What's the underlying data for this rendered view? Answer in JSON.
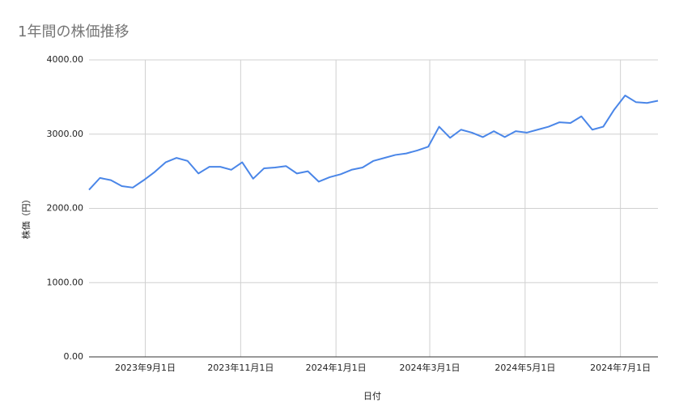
{
  "chart_data": {
    "type": "line",
    "title": "1年間の株価推移",
    "x_label": "日付",
    "y_label": "株価（円）",
    "x": [
      "2023-07-27",
      "2023-08-03",
      "2023-08-10",
      "2023-08-17",
      "2023-08-24",
      "2023-08-31",
      "2023-09-07",
      "2023-09-14",
      "2023-09-21",
      "2023-09-28",
      "2023-10-05",
      "2023-10-12",
      "2023-10-19",
      "2023-10-26",
      "2023-11-02",
      "2023-11-09",
      "2023-11-16",
      "2023-11-23",
      "2023-11-30",
      "2023-12-07",
      "2023-12-14",
      "2023-12-21",
      "2023-12-28",
      "2024-01-04",
      "2024-01-11",
      "2024-01-18",
      "2024-01-25",
      "2024-02-01",
      "2024-02-08",
      "2024-02-15",
      "2024-02-22",
      "2024-02-29",
      "2024-03-07",
      "2024-03-14",
      "2024-03-21",
      "2024-03-28",
      "2024-04-04",
      "2024-04-11",
      "2024-04-18",
      "2024-04-25",
      "2024-05-02",
      "2024-05-09",
      "2024-05-16",
      "2024-05-23",
      "2024-05-30",
      "2024-06-06",
      "2024-06-13",
      "2024-06-20",
      "2024-06-27",
      "2024-07-04",
      "2024-07-11",
      "2024-07-18",
      "2024-07-25"
    ],
    "series": [
      {
        "name": "株価",
        "color": "#4a86e8",
        "values": [
          2250,
          2410,
          2380,
          2300,
          2280,
          2380,
          2490,
          2620,
          2680,
          2640,
          2470,
          2560,
          2560,
          2520,
          2620,
          2400,
          2540,
          2550,
          2570,
          2470,
          2500,
          2360,
          2420,
          2460,
          2520,
          2550,
          2640,
          2680,
          2720,
          2740,
          2780,
          2830,
          3100,
          2950,
          3060,
          3020,
          2960,
          3040,
          2960,
          3040,
          3020,
          3060,
          3100,
          3160,
          3150,
          3240,
          3060,
          3100,
          3330,
          3520,
          3430,
          3420,
          3450
        ]
      }
    ],
    "xlim": [
      "2023-07-27",
      "2024-07-25"
    ],
    "xticks": [
      {
        "value": "2023-09-01",
        "label": "2023年9月1日"
      },
      {
        "value": "2023-11-01",
        "label": "2023年11月1日"
      },
      {
        "value": "2024-01-01",
        "label": "2024年1月1日"
      },
      {
        "value": "2024-03-01",
        "label": "2024年3月1日"
      },
      {
        "value": "2024-05-01",
        "label": "2024年5月1日"
      },
      {
        "value": "2024-07-01",
        "label": "2024年7月1日"
      }
    ],
    "ylim": [
      0,
      4000
    ],
    "yticks": [
      {
        "value": 0,
        "label": "0.00"
      },
      {
        "value": 1000,
        "label": "1000.00"
      },
      {
        "value": 2000,
        "label": "2000.00"
      },
      {
        "value": 3000,
        "label": "3000.00"
      },
      {
        "value": 4000,
        "label": "4000.00"
      }
    ],
    "grid": true
  }
}
